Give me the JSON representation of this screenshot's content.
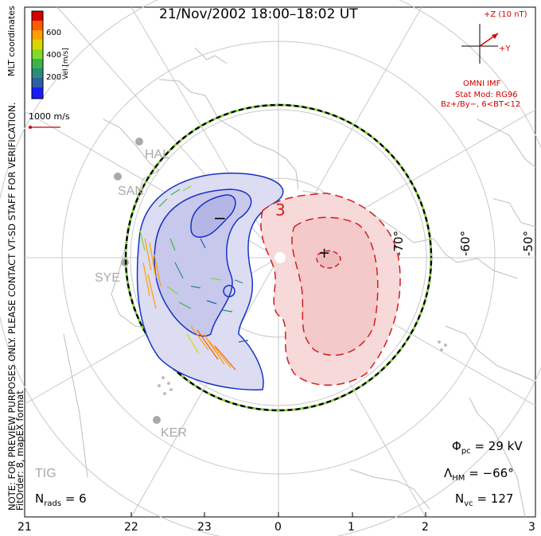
{
  "title": "21/Nov/2002 18:00–18:02 UT",
  "left_notes": {
    "line1": "NOTE: FOR PREVIEW PURPOSES ONLY. PLEASE CONTACT VT-SD STAFF FOR VERIFICATION.",
    "line2": "FitOrder: 8, mapEX format",
    "coords": "MLT coordinates"
  },
  "colorbar": {
    "label": "Vel [m/s]",
    "ticks": [
      "600",
      "400",
      "200"
    ],
    "colors": [
      "#d40000",
      "#ff5a00",
      "#ff9f00",
      "#d8d800",
      "#7fdc2a",
      "#3cb44b",
      "#2a8c7a",
      "#2b5fa6",
      "#1b1bff"
    ]
  },
  "velocity_scale": {
    "label": "1000 m/s",
    "color": "#d40000"
  },
  "stations": [
    "HAL",
    "SAN",
    "SYE",
    "KER",
    "TIG"
  ],
  "lat_labels": [
    "-70°",
    "-60°",
    "-50°"
  ],
  "mlt_labels": [
    "21",
    "22",
    "23",
    "0",
    "1",
    "2",
    "3"
  ],
  "imf": {
    "z_label": "+Z (10 nT)",
    "y_label": "+Y",
    "source": "OMNI IMF",
    "stat_mod": "Stat Mod: RG96",
    "condition": "Bz+/By−, 6<BT<12",
    "color": "#d00000"
  },
  "stats": {
    "phi_pc": {
      "sym": "Φ",
      "sub": "pc",
      "value": "= 29 kV"
    },
    "lambda_hm": {
      "sym": "Λ",
      "sub": "HM",
      "value": "= −66°"
    },
    "n_vc": {
      "sym": "N",
      "sub": "vc",
      "value": "= 127"
    },
    "n_rads": {
      "sym": "N",
      "sub": "rads",
      "value": "= 6"
    }
  },
  "cells": {
    "dusk_sign": "−",
    "dawn_sign": "+",
    "contour_label": "3",
    "dusk_color": "#1432c8",
    "dawn_color": "#d21e1e"
  }
}
